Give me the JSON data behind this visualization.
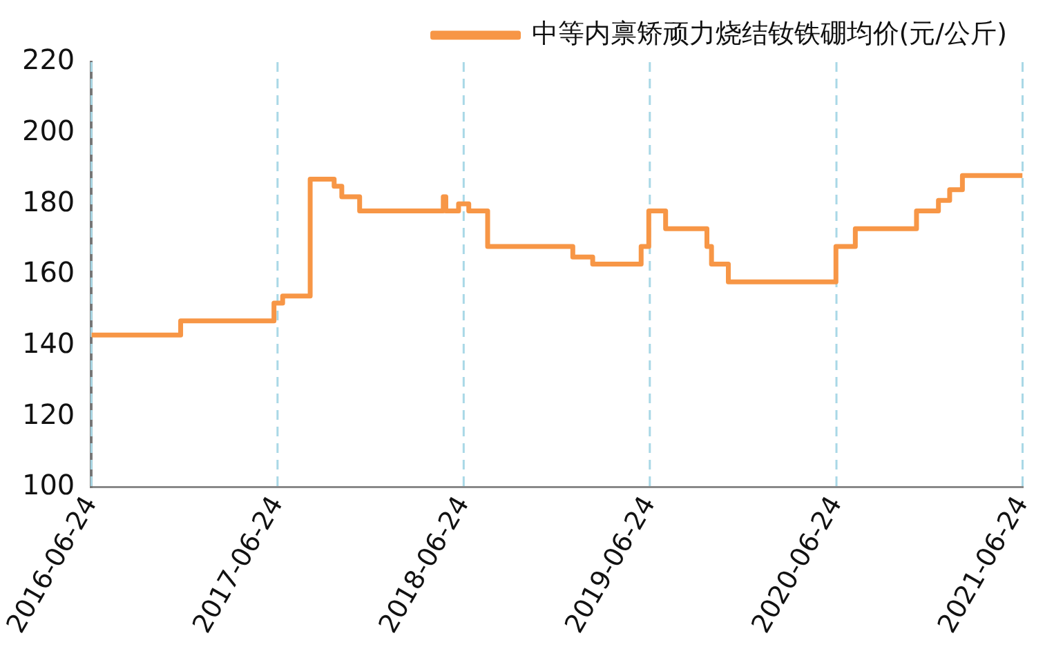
{
  "chart_data": {
    "type": "step",
    "x": [
      "2016-06-24",
      "2016-12-16",
      "2017-06-17",
      "2017-07-04",
      "2017-08-27",
      "2017-10-13",
      "2017-10-28",
      "2017-12-02",
      "2018-05-15",
      "2018-05-20",
      "2018-06-14",
      "2018-07-04",
      "2018-08-10",
      "2019-01-24",
      "2019-03-04",
      "2019-06-07",
      "2019-06-22",
      "2019-07-25",
      "2019-10-14",
      "2019-10-23",
      "2019-11-25",
      "2020-06-23",
      "2020-07-31",
      "2020-11-28",
      "2020-12-21",
      "2021-01-10",
      "2021-02-01",
      "2021-02-26",
      "2021-06-24"
    ],
    "series": [
      {
        "name": "中等内禀矫顽力烧结钕铁硼均价(元/公斤)",
        "color": "#f79646",
        "values": [
          143,
          147,
          152,
          154,
          187,
          185,
          182,
          178,
          182,
          178,
          180,
          178,
          168,
          165,
          163,
          168,
          178,
          173,
          168,
          163,
          158,
          168,
          173,
          178,
          178,
          181,
          184,
          188,
          188
        ]
      }
    ],
    "xlim": [
      "2016-06-24",
      "2021-06-24"
    ],
    "xticks": [
      "2016-06-24",
      "2017-06-24",
      "2018-06-24",
      "2019-06-24",
      "2020-06-24",
      "2021-06-24"
    ],
    "ylim": [
      100,
      220
    ],
    "yticks": [
      100,
      120,
      140,
      160,
      180,
      200,
      220
    ],
    "grid": "x",
    "legend": "top",
    "marker": "none",
    "line_style": "solid"
  }
}
